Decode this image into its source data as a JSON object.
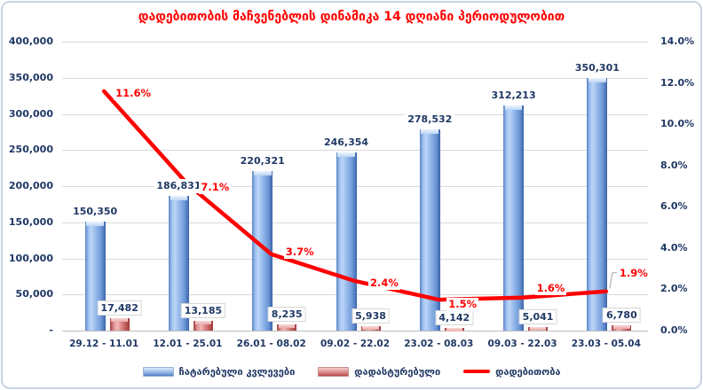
{
  "title": "დადებითობის მაჩვენებლის დინამიკა 14 დღიანი პერიოდულობით",
  "colors": {
    "title": "#FF0000",
    "axis_text": "#1F3864",
    "line": "#FE0000",
    "bar_blue": "#7DA7DC",
    "bar_red": "#C0504D",
    "gridline": "#D9D9D9"
  },
  "legend": {
    "items": [
      {
        "label": "ჩატარებული კვლევები",
        "swatch": "bar-blue"
      },
      {
        "label": "დადასტურებული",
        "swatch": "bar-red"
      },
      {
        "label": "დადებითობა",
        "swatch": "line-red"
      }
    ]
  },
  "chart_data": {
    "type": "bar",
    "subtype": "combo-bar-line-dual-axis",
    "title": "დადებითობის მაჩვენებლის დინამიკა 14 დღიანი პერიოდულობით",
    "categories": [
      "29.12 - 11.01",
      "12.01 - 25.01",
      "26.01 - 08.02",
      "09.02 - 22.02",
      "23.02 - 08.03",
      "09.03 - 22.03",
      "23.03 - 05.04"
    ],
    "series": [
      {
        "name": "ჩატარებული კვლევები",
        "type": "bar",
        "axis": "left",
        "values": [
          150350,
          186831,
          220321,
          246354,
          278532,
          312213,
          350301
        ],
        "labels": [
          "150,350",
          "186,831",
          "220,321",
          "246,354",
          "278,532",
          "312,213",
          "350,301"
        ]
      },
      {
        "name": "დადასტურებული",
        "type": "bar",
        "axis": "left",
        "values": [
          17482,
          13185,
          8235,
          5938,
          4142,
          5041,
          6780
        ],
        "labels": [
          "17,482",
          "13,185",
          "8,235",
          "5,938",
          "4,142",
          "5,041",
          "6,780"
        ]
      },
      {
        "name": "დადებითობა",
        "type": "line",
        "axis": "right",
        "values": [
          11.6,
          7.1,
          3.7,
          2.4,
          1.5,
          1.6,
          1.9
        ],
        "labels": [
          "11.6%",
          "7.1%",
          "3.7%",
          "2.4%",
          "1.5%",
          "1.6%",
          "1.9%"
        ]
      }
    ],
    "left_axis": {
      "min": 0,
      "max": 400000,
      "step": 50000,
      "tick_labels_top_to_bottom": [
        "400,000",
        "350,000",
        "300,000",
        "250,000",
        "200,000",
        "150,000",
        "100,000",
        "50,000",
        "-"
      ]
    },
    "right_axis": {
      "min": 0,
      "max": 14,
      "step": 2,
      "tick_labels_top_to_bottom": [
        "14.0%",
        "12.0%",
        "10.0%",
        "8.0%",
        "6.0%",
        "4.0%",
        "2.0%",
        "0.0%"
      ]
    },
    "grid": "horizontal gridlines at left-axis steps",
    "legend_position": "bottom"
  }
}
